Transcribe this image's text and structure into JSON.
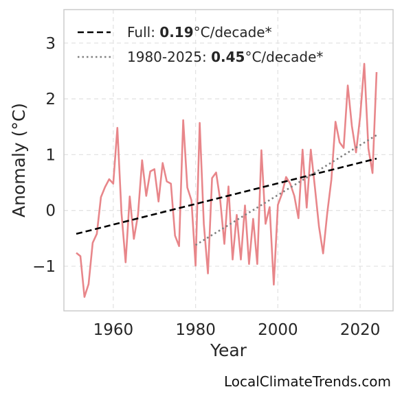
{
  "chart_data": {
    "type": "line",
    "xlabel": "Year",
    "ylabel": "Anomaly (°C)",
    "xlim": [
      1948,
      2028
    ],
    "ylim": [
      -1.8,
      3.6
    ],
    "xticks": [
      1960,
      1980,
      2000,
      2020
    ],
    "yticks": [
      -1,
      0,
      1,
      2,
      3
    ],
    "ytick_labels": [
      "−1",
      "0",
      "1",
      "2",
      "3"
    ],
    "grid": true,
    "legend_position": "top-left",
    "series": [
      {
        "style": "solid",
        "color": "#e8868a",
        "x": [
          1951,
          1952,
          1953,
          1954,
          1955,
          1956,
          1957,
          1958,
          1959,
          1960,
          1961,
          1962,
          1963,
          1964,
          1965,
          1966,
          1967,
          1968,
          1969,
          1970,
          1971,
          1972,
          1973,
          1974,
          1975,
          1976,
          1977,
          1978,
          1979,
          1980,
          1981,
          1982,
          1983,
          1984,
          1985,
          1986,
          1987,
          1988,
          1989,
          1990,
          1991,
          1992,
          1993,
          1994,
          1995,
          1996,
          1997,
          1998,
          1999,
          2000,
          2001,
          2002,
          2003,
          2004,
          2005,
          2006,
          2007,
          2008,
          2009,
          2010,
          2011,
          2012,
          2013,
          2014,
          2015,
          2016,
          2017,
          2018,
          2019,
          2020,
          2021,
          2022,
          2023,
          2024
        ],
        "y": [
          -0.76,
          -0.82,
          -1.55,
          -1.32,
          -0.58,
          -0.42,
          0.24,
          0.42,
          0.56,
          0.48,
          1.48,
          -0.05,
          -0.93,
          0.25,
          -0.51,
          -0.08,
          0.9,
          0.26,
          0.7,
          0.74,
          0.16,
          0.85,
          0.52,
          0.48,
          -0.45,
          -0.64,
          1.62,
          0.41,
          0.18,
          -0.99,
          1.57,
          -0.24,
          -1.13,
          0.58,
          0.68,
          0.18,
          -0.6,
          0.43,
          -0.88,
          -0.08,
          -0.88,
          0.09,
          -0.96,
          -0.15,
          -0.96,
          1.08,
          -0.24,
          0.06,
          -1.33,
          0.1,
          0.3,
          0.6,
          0.48,
          0.26,
          -0.14,
          1.09,
          0.05,
          1.09,
          0.42,
          -0.29,
          -0.77,
          -0.05,
          0.55,
          1.59,
          1.22,
          1.12,
          2.24,
          1.51,
          1.04,
          1.68,
          2.63,
          1.11,
          0.67,
          2.48
        ]
      },
      {
        "style": "dashed",
        "color": "#000000",
        "legend_prefix": "Full: ",
        "legend_value": "0.19",
        "legend_suffix": "°C/decade*",
        "x": [
          1951,
          2024
        ],
        "y": [
          -0.42,
          0.93
        ]
      },
      {
        "style": "dotted",
        "color": "#808080",
        "legend_prefix": "1980-2025: ",
        "legend_value": "0.45",
        "legend_suffix": "°C/decade*",
        "x": [
          1980,
          2024
        ],
        "y": [
          -0.62,
          1.35
        ]
      }
    ]
  },
  "watermark": "LocalClimateTrends.com"
}
